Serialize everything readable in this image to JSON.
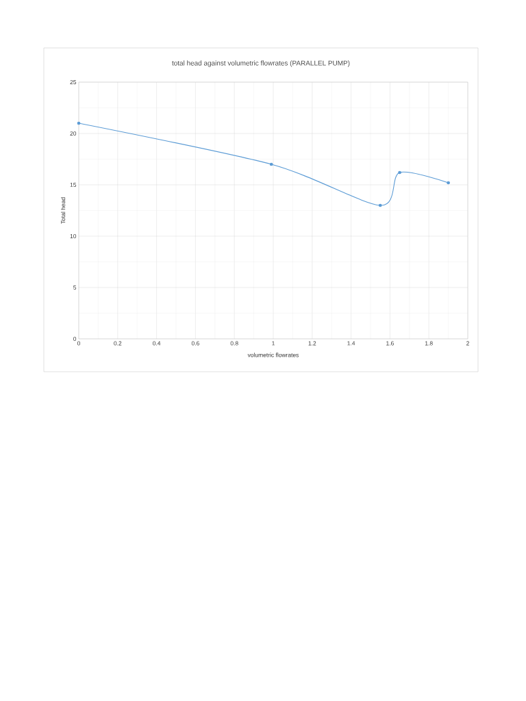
{
  "chart_data": {
    "type": "line",
    "title": "total head against volumetric flowrates (PARALLEL PUMP)",
    "xlabel": "volumetric flowrates",
    "ylabel": "Total head",
    "x": [
      0,
      0.99,
      1.55,
      1.65,
      1.9
    ],
    "series": [
      {
        "color": "#5b9bd5",
        "values": [
          21,
          17,
          13,
          16.2,
          15.2
        ]
      }
    ],
    "xlim": [
      0,
      2
    ],
    "xticks": [
      0,
      0.2,
      0.4,
      0.6,
      0.8,
      1,
      1.2,
      1.4,
      1.6,
      1.8,
      2
    ],
    "ylim": [
      0,
      25
    ],
    "yticks": [
      0,
      5,
      10,
      15,
      20,
      25
    ],
    "grid": true,
    "marker": "circle",
    "line_style": "solid"
  }
}
